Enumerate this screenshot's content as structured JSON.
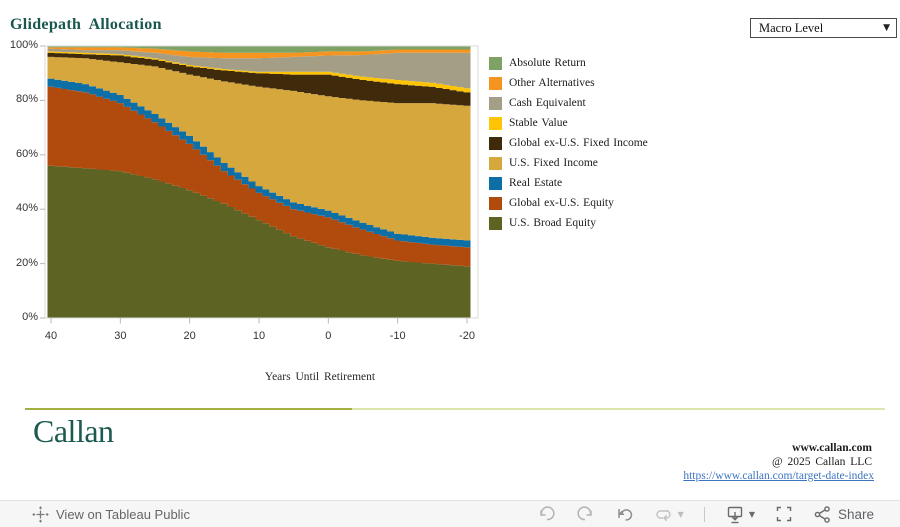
{
  "header": {
    "title": "Glidepath  Allocation",
    "filter": {
      "selected": "Macro Level"
    }
  },
  "chart_data": {
    "type": "area",
    "stacked": true,
    "unit": "percent",
    "title": "Glidepath Allocation",
    "xlabel": "Years Until Retirement",
    "ylabel": "",
    "xlim": [
      40,
      -20
    ],
    "ylim": [
      0,
      100
    ],
    "grid": false,
    "legend_position": "right",
    "x_ticks": [
      "40",
      "30",
      "20",
      "10",
      "0",
      "-10",
      "-20"
    ],
    "x_tick_years": [
      40,
      30,
      20,
      10,
      0,
      -10,
      -20
    ],
    "y_ticks": [
      "0%",
      "20%",
      "40%",
      "60%",
      "80%",
      "100%"
    ],
    "y_tick_values": [
      0,
      20,
      40,
      60,
      80,
      100
    ],
    "sample_years": [
      40,
      35,
      30,
      25,
      20,
      15,
      10,
      5,
      0,
      -5,
      -10,
      -15,
      -20
    ],
    "series": [
      {
        "name": "U.S. Broad Equity",
        "color": "#5D6323",
        "values": [
          56,
          55,
          54,
          51,
          47,
          42,
          36,
          30,
          26,
          23,
          21,
          20,
          19
        ]
      },
      {
        "name": "Global ex-U.S. Equity",
        "color": "#B04B0D",
        "values": [
          29,
          28,
          25,
          21,
          17,
          12,
          10,
          10,
          11,
          9.5,
          7.5,
          7,
          7
        ]
      },
      {
        "name": "Real Estate",
        "color": "#0E6FA6",
        "values": [
          3,
          3,
          3,
          3,
          3,
          3,
          2.5,
          2.5,
          2.5,
          2.5,
          2.5,
          2.5,
          2.5
        ]
      },
      {
        "name": "U.S. Fixed Income",
        "color": "#D6A73C",
        "values": [
          8,
          9.5,
          12,
          17.5,
          22.5,
          30,
          36.5,
          41,
          42,
          45,
          48,
          49.5,
          49.5
        ]
      },
      {
        "name": "Global ex-U.S. Fixed Income",
        "color": "#3F2B0B",
        "values": [
          1.5,
          1.5,
          2.5,
          2.5,
          3,
          4,
          5,
          6,
          8,
          7.5,
          7,
          6,
          5
        ]
      },
      {
        "name": "Stable Value",
        "color": "#FFC505",
        "values": [
          0.5,
          0.5,
          0.5,
          0.5,
          0.5,
          0.5,
          0.5,
          1,
          1,
          1.2,
          1.5,
          1.5,
          1.5
        ]
      },
      {
        "name": "Cash Equivalent",
        "color": "#A49E86",
        "values": [
          1,
          1,
          1.5,
          2,
          3,
          4,
          5,
          5.5,
          6,
          8,
          10,
          11,
          13
        ]
      },
      {
        "name": "Other Alternatives",
        "color": "#F5941E",
        "values": [
          0.5,
          1,
          1,
          1.5,
          2,
          2,
          2,
          1.5,
          1.5,
          1.3,
          1.2,
          1.2,
          1.2
        ]
      },
      {
        "name": "Absolute Return",
        "color": "#7DA263",
        "values": [
          0.5,
          0.5,
          0.5,
          1,
          2,
          2.5,
          2.5,
          2.5,
          2,
          2,
          1.3,
          1.3,
          1.3
        ]
      }
    ]
  },
  "footer": {
    "logo_text": "Callan",
    "website": "www.callan.com",
    "copyright": "@ 2025 Callan LLC",
    "link": "https://www.callan.com/target-date-index"
  },
  "toolbar": {
    "view_label": "View on Tableau Public",
    "share_label": "Share"
  },
  "colors": {
    "title": "#19564E",
    "logo": "#1C5A50",
    "link": "#3D74C0",
    "divider_left": "#A4AF43",
    "divider_right": "#DCE5AC"
  }
}
